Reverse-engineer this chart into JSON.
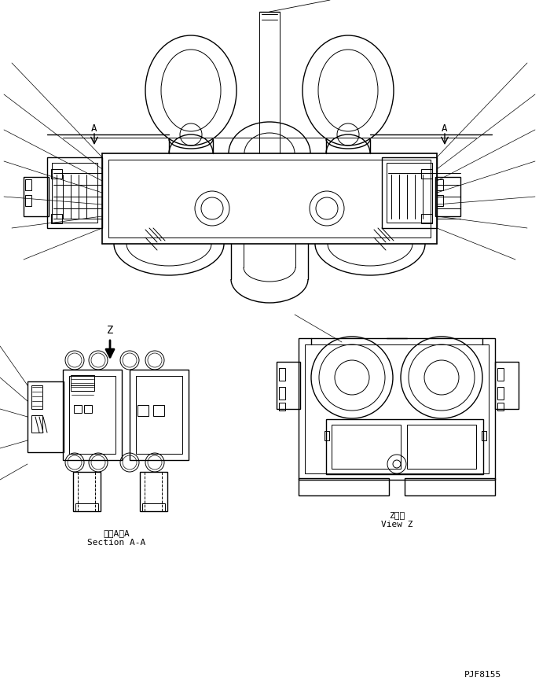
{
  "bg_color": "#ffffff",
  "line_color": "#000000",
  "fig_width": 6.86,
  "fig_height": 8.71,
  "dpi": 100,
  "label_section_aa_jp": "断面A－A",
  "label_section_aa_en": "Section A-A",
  "label_view_z_jp": "Z　視",
  "label_view_z_en": "View Z",
  "label_z": "Z",
  "part_number": "PJF8155"
}
